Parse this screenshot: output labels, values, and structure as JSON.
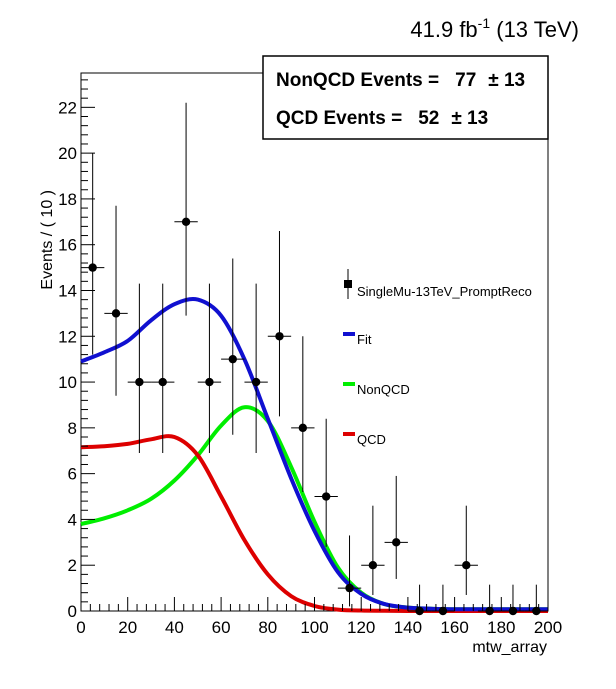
{
  "header": {
    "lumi_value": "41.9 fb",
    "lumi_exp": "-1",
    "lumi_energy": "(13 TeV)"
  },
  "stats_box": {
    "line1_label": "NonQCD Events =",
    "line1_value": "77",
    "line1_err": "± 13",
    "line2_label": "QCD Events =",
    "line2_value": "52",
    "line2_err": "± 13"
  },
  "chart_data": {
    "type": "scatter",
    "xlabel": "mtw_array",
    "ylabel": "Events / ( 10 )",
    "xlim": [
      0,
      200
    ],
    "ylim": [
      0,
      23.5
    ],
    "xticks": [
      0,
      20,
      40,
      60,
      80,
      100,
      120,
      140,
      160,
      180,
      200
    ],
    "yticks": [
      0,
      2,
      4,
      6,
      8,
      10,
      12,
      14,
      16,
      18,
      20,
      22
    ],
    "grid": false,
    "legend_position": "right",
    "data": {
      "name": "SingleMu-13TeV_PromptReco",
      "color": "#000000",
      "bin_width": 10,
      "points": [
        {
          "x": 5,
          "y": 15,
          "lo": 3.8,
          "hi": 5.0
        },
        {
          "x": 15,
          "y": 13,
          "lo": 3.6,
          "hi": 4.7
        },
        {
          "x": 25,
          "y": 10,
          "lo": 3.1,
          "hi": 4.3
        },
        {
          "x": 35,
          "y": 10,
          "lo": 3.1,
          "hi": 4.3
        },
        {
          "x": 45,
          "y": 17,
          "lo": 4.1,
          "hi": 5.2
        },
        {
          "x": 55,
          "y": 10,
          "lo": 3.1,
          "hi": 4.3
        },
        {
          "x": 65,
          "y": 11,
          "lo": 3.3,
          "hi": 4.4
        },
        {
          "x": 75,
          "y": 10,
          "lo": 3.1,
          "hi": 4.3
        },
        {
          "x": 85,
          "y": 12,
          "lo": 3.5,
          "hi": 4.6
        },
        {
          "x": 95,
          "y": 8,
          "lo": 2.8,
          "hi": 4.0
        },
        {
          "x": 105,
          "y": 5,
          "lo": 2.2,
          "hi": 3.4
        },
        {
          "x": 115,
          "y": 1,
          "lo": 0.8,
          "hi": 2.3
        },
        {
          "x": 125,
          "y": 2,
          "lo": 1.3,
          "hi": 2.6
        },
        {
          "x": 135,
          "y": 3,
          "lo": 1.6,
          "hi": 2.9
        },
        {
          "x": 145,
          "y": 0,
          "lo": 0,
          "hi": 1.15
        },
        {
          "x": 155,
          "y": 0,
          "lo": 0,
          "hi": 1.15
        },
        {
          "x": 165,
          "y": 2,
          "lo": 1.3,
          "hi": 2.6
        },
        {
          "x": 175,
          "y": 0,
          "lo": 0,
          "hi": 1.15
        },
        {
          "x": 185,
          "y": 0,
          "lo": 0,
          "hi": 1.15
        },
        {
          "x": 195,
          "y": 0,
          "lo": 0,
          "hi": 1.15
        }
      ]
    },
    "series": [
      {
        "name": "Fit",
        "color": "#1010d0",
        "x": [
          0,
          10,
          20,
          30,
          40,
          50,
          60,
          70,
          80,
          90,
          100,
          110,
          120,
          130,
          140,
          150,
          160,
          170,
          180,
          190,
          200
        ],
        "values": [
          10.9,
          11.3,
          11.8,
          12.7,
          13.4,
          13.6,
          12.9,
          11.0,
          8.4,
          5.8,
          3.5,
          1.7,
          0.75,
          0.3,
          0.15,
          0.1,
          0.08,
          0.08,
          0.08,
          0.08,
          0.08
        ]
      },
      {
        "name": "NonQCD",
        "color": "#00ee00",
        "x": [
          0,
          10,
          20,
          30,
          40,
          50,
          60,
          70,
          80,
          90,
          100,
          110,
          120,
          130,
          140,
          150,
          160,
          170,
          180,
          190,
          200
        ],
        "values": [
          3.8,
          4.05,
          4.4,
          4.9,
          5.7,
          6.8,
          8.1,
          8.9,
          8.3,
          6.3,
          3.9,
          1.9,
          0.8,
          0.3,
          0.15,
          0.1,
          0.08,
          0.08,
          0.08,
          0.08,
          0.08
        ]
      },
      {
        "name": "QCD",
        "color": "#dd0000",
        "x": [
          0,
          10,
          20,
          30,
          40,
          50,
          60,
          70,
          80,
          90,
          100,
          110,
          120,
          130,
          140,
          150,
          160,
          170,
          180,
          190,
          200
        ],
        "values": [
          7.15,
          7.2,
          7.3,
          7.5,
          7.6,
          6.8,
          5.0,
          3.1,
          1.6,
          0.65,
          0.22,
          0.06,
          0.02,
          0.01,
          0,
          0,
          0,
          0,
          0,
          0,
          0
        ]
      }
    ]
  }
}
